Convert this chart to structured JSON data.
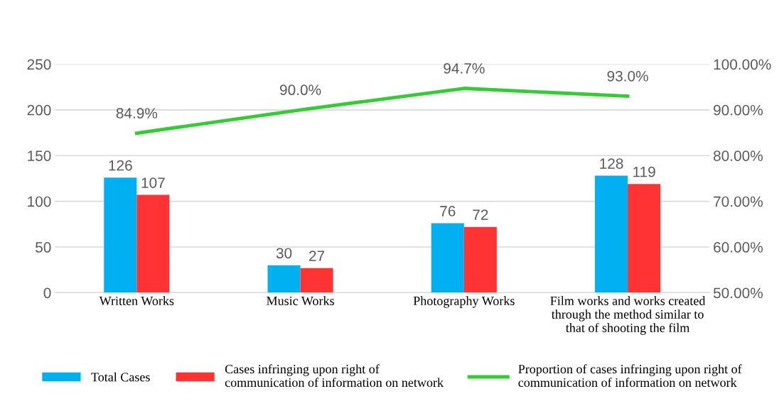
{
  "chart_data": {
    "type": "bar",
    "categories": [
      "Written Works",
      "Music Works",
      "Photography Works",
      "Film works and works created through the method similar to that of shooting the film"
    ],
    "series": [
      {
        "name": "Total Cases",
        "color": "#00b0f0",
        "values": [
          126,
          30,
          76,
          128
        ]
      },
      {
        "name": "Cases infringing upon right of communication of information on network",
        "color": "#ff3333",
        "values": [
          107,
          27,
          72,
          119
        ]
      },
      {
        "name": "Proportion of cases infringing upon right of communication of information on network",
        "type": "line",
        "axis": "y2",
        "color": "#33cc33",
        "values": [
          84.9,
          90.0,
          94.7,
          93.0
        ],
        "value_labels": [
          "84.9%",
          "90.0%",
          "94.7%",
          "93.0%"
        ]
      }
    ],
    "data_labels": true,
    "ylim": [
      0,
      250
    ],
    "yticks": [
      0,
      50,
      100,
      150,
      200,
      250
    ],
    "y2lim": [
      50,
      100
    ],
    "y2ticks": [
      {
        "value": 50,
        "label": "50.00%"
      },
      {
        "value": 60,
        "label": "60.00%"
      },
      {
        "value": 70,
        "label": "70.00%"
      },
      {
        "value": 80,
        "label": "80.00%"
      },
      {
        "value": 90,
        "label": "90.00%"
      },
      {
        "value": 100,
        "label": "100.00%"
      }
    ],
    "grid": "y",
    "legend": "bottom",
    "marker": "none",
    "line_style": "solid"
  }
}
